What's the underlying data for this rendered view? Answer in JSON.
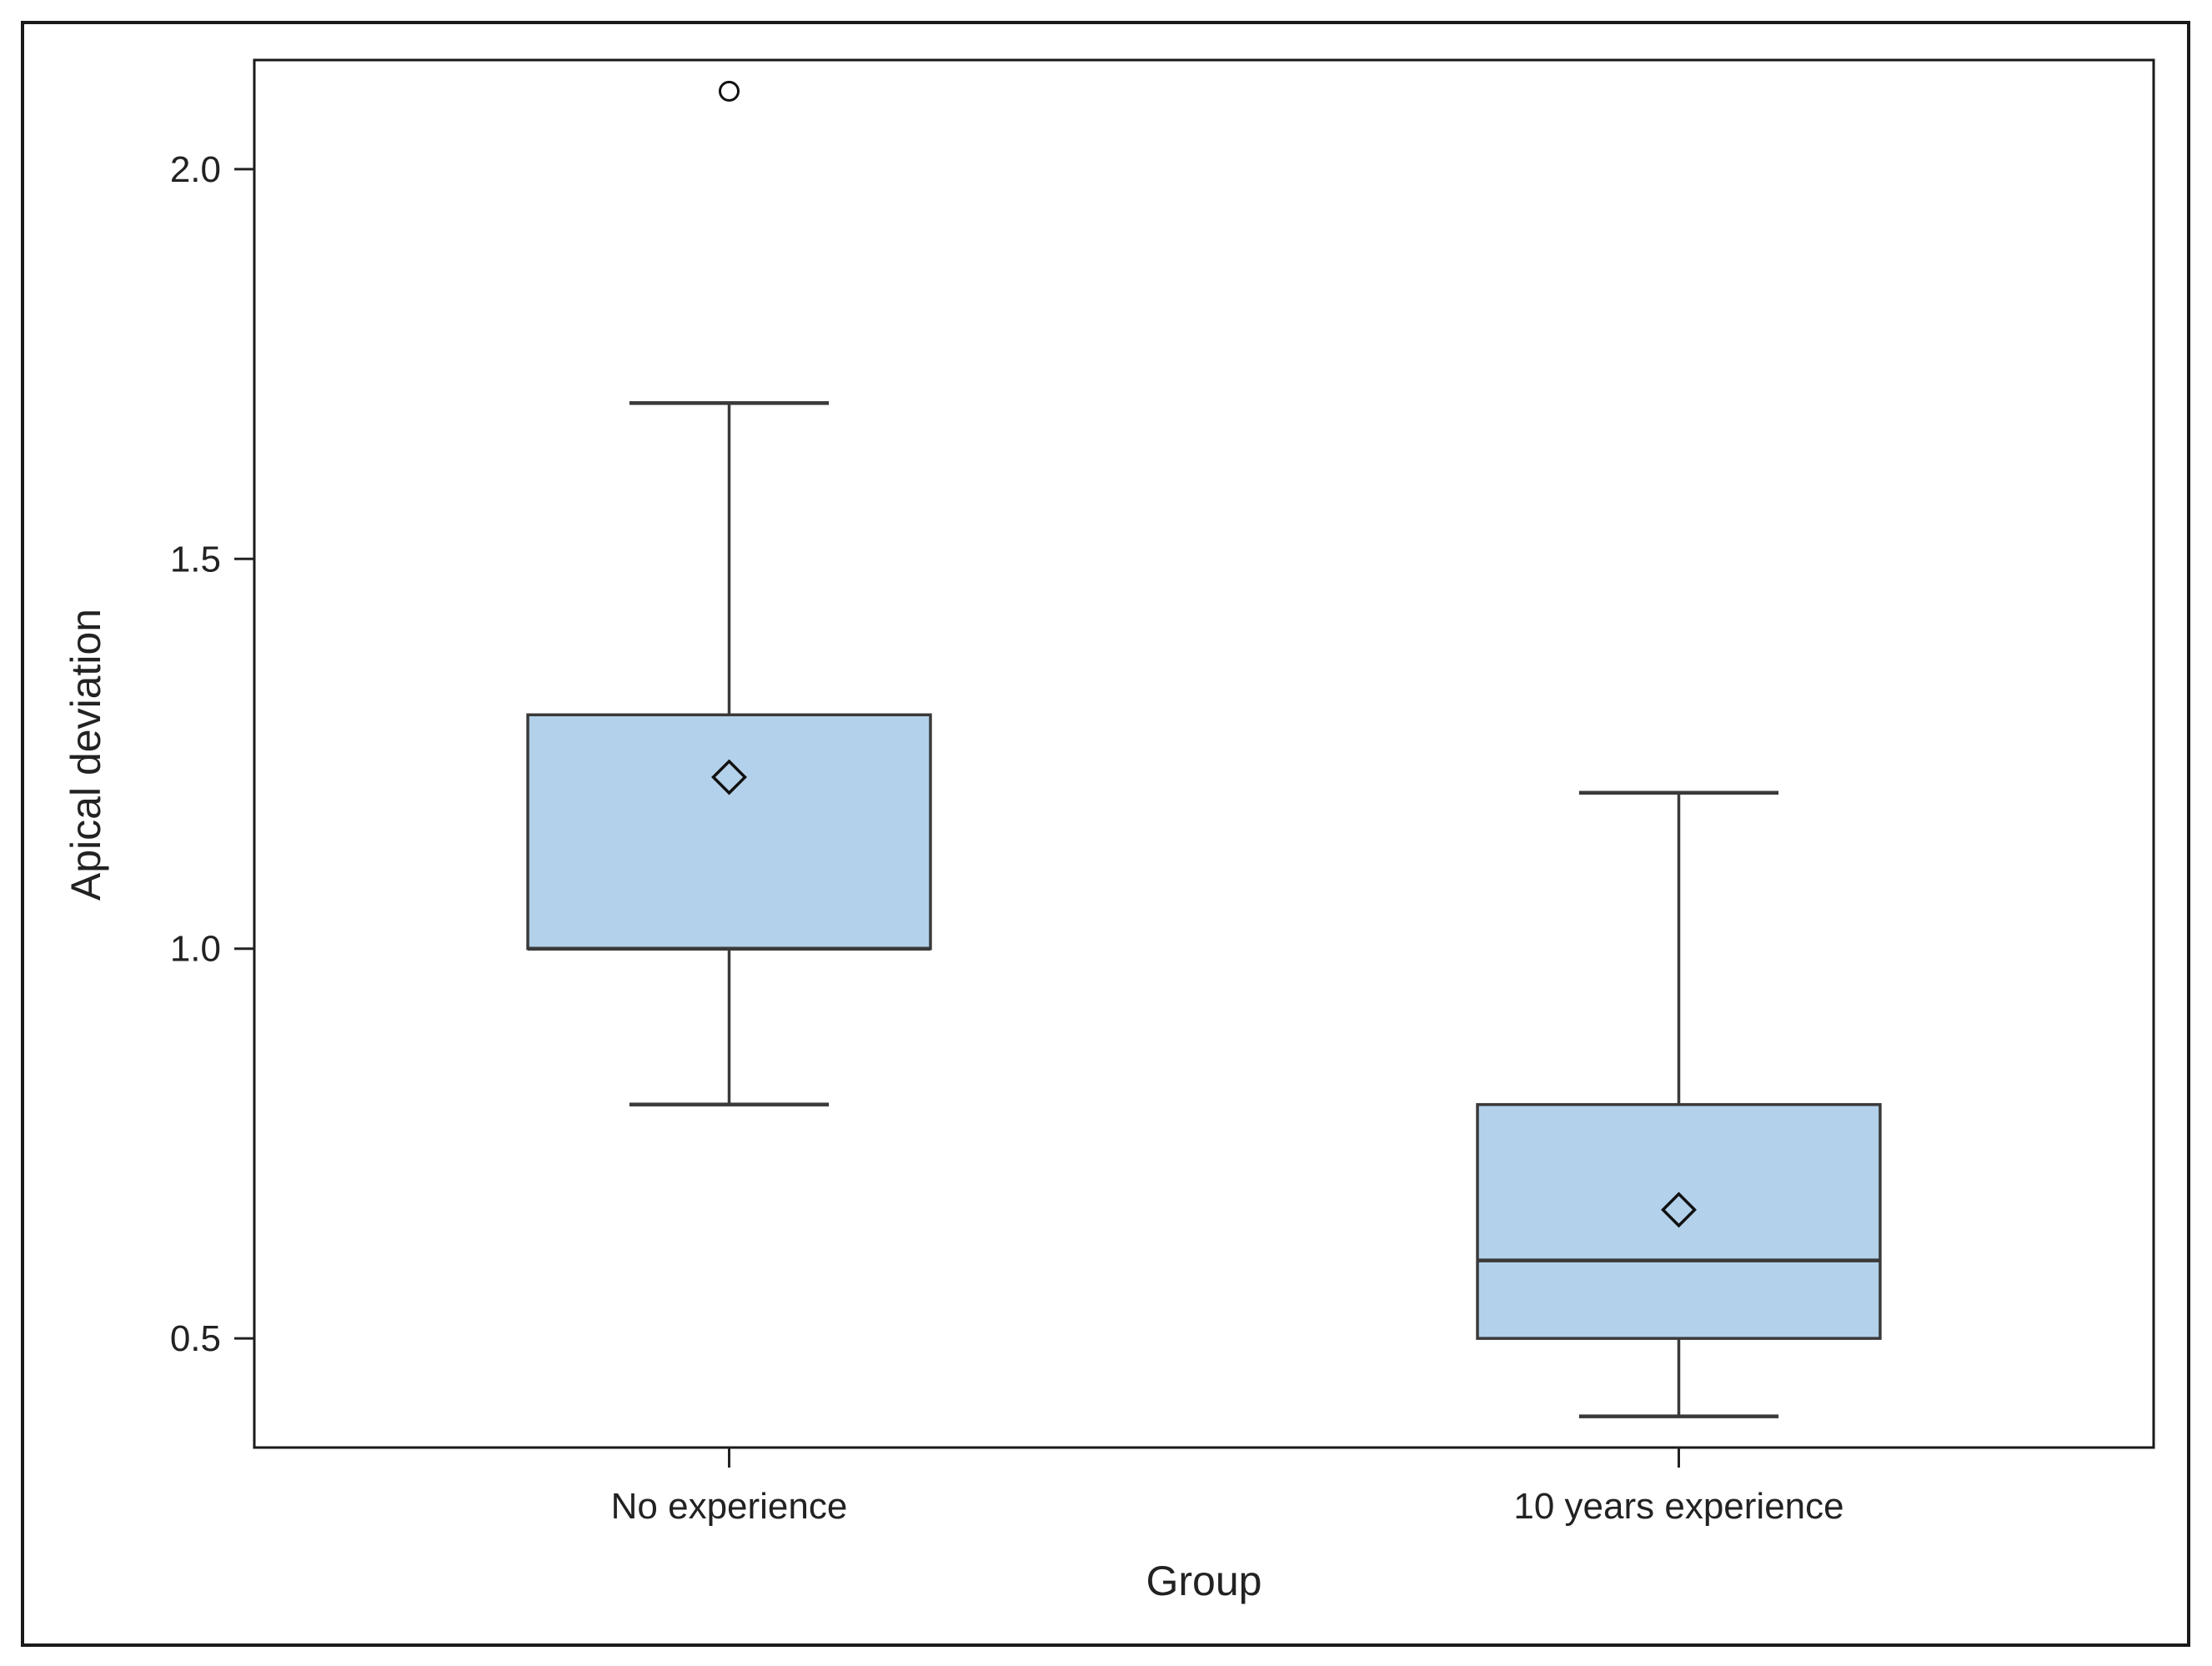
{
  "chart_data": {
    "type": "box",
    "xlabel": "Group",
    "ylabel": "Apical deviation",
    "ylim": [
      0.36,
      2.14
    ],
    "yticks": [
      0.5,
      1.0,
      1.5,
      2.0
    ],
    "ytick_labels": [
      "0.5",
      "1.0",
      "1.5",
      "2.0"
    ],
    "categories": [
      "No experience",
      "10 years experience"
    ],
    "boxes": [
      {
        "category": "No experience",
        "whisker_low": 0.8,
        "q1": 1.0,
        "median": 1.0,
        "q3": 1.3,
        "whisker_high": 1.7,
        "mean": 1.22,
        "outliers": [
          2.1
        ]
      },
      {
        "category": "10 years experience",
        "whisker_low": 0.4,
        "q1": 0.5,
        "median": 0.6,
        "q3": 0.8,
        "whisker_high": 1.2,
        "mean": 0.665,
        "outliers": []
      }
    ],
    "grid": false,
    "colors": {
      "box_fill": "#b3d1ea",
      "box_stroke": "#3a3a3a",
      "axis": "#222222",
      "frame": "#1a1a1a"
    }
  }
}
